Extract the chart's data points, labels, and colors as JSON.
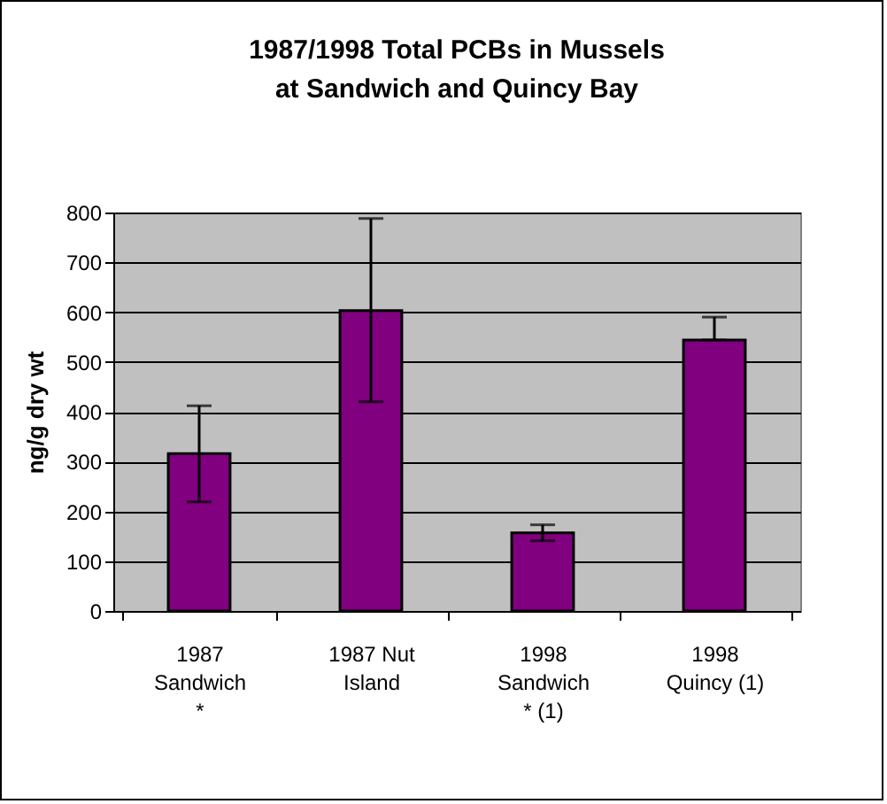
{
  "chart_data": {
    "type": "bar",
    "title": "1987/1998 Total PCBs in Mussels\nat Sandwich and Quincy Bay",
    "ylabel": "ng/g dry wt",
    "categories": [
      "1987\nSandwich\n*",
      "1987 Nut\nIsland",
      "1998\nSandwich\n* (1)",
      "1998\nQuincy (1)"
    ],
    "values": [
      316,
      603,
      157,
      544
    ],
    "errors": [
      [
        219,
        412
      ],
      [
        420,
        788
      ],
      [
        141,
        173
      ],
      [
        544,
        590
      ]
    ],
    "color": "#800080",
    "ylim": [
      0,
      800
    ],
    "yticks": [
      0,
      100,
      200,
      300,
      400,
      500,
      600,
      700,
      800
    ],
    "grid": "y"
  }
}
